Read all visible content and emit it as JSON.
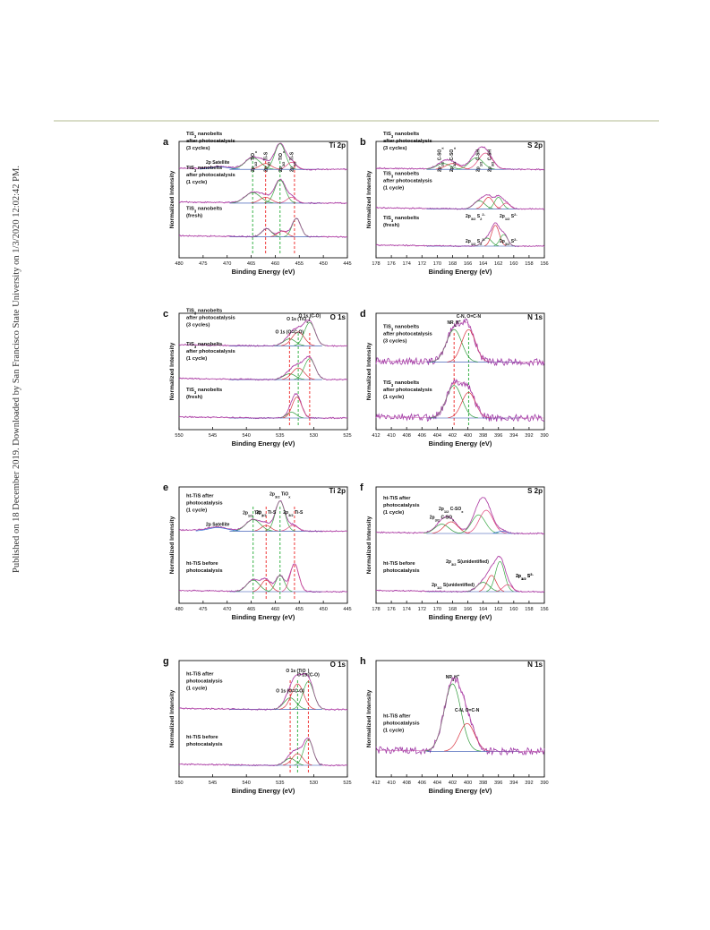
{
  "sidebar_text": "Published on 18 December 2019. Downloaded by San Francisco State University on 1/3/2020 12:02:42 PM.",
  "chart_data": [
    {
      "id": "a",
      "type": "line",
      "title": "Ti 2p",
      "xlabel": "Binding Energy (eV)",
      "ylabel": "Normalized Intensity",
      "xlim": [
        480,
        445
      ],
      "xticks": [
        480,
        475,
        470,
        465,
        460,
        455,
        450,
        445
      ],
      "spectra": [
        {
          "name": "TiS3 nanobelts after photocatalysis (3 cycles)",
          "label_lines": [
            "TiS<sub>3</sub> nanobelts",
            "after photocatalysis",
            "(3 cycles)"
          ],
          "base": 0.76,
          "peaks": [
            {
              "c": 464.7,
              "w": 1.6,
              "h": 0.1
            },
            {
              "c": 462.0,
              "w": 1.2,
              "h": 0.05
            },
            {
              "c": 459.0,
              "w": 1.1,
              "h": 0.22
            },
            {
              "c": 456.6,
              "w": 1.0,
              "h": 0.06
            },
            {
              "c": 471.5,
              "w": 2.0,
              "h": 0.02
            }
          ]
        },
        {
          "name": "TiS3 nanobelts after photocatalysis (1 cycle)",
          "label_lines": [
            "TiS<sub>3</sub> nanobelts",
            "after photocatalysis",
            "(1 cycle)"
          ],
          "base": 0.47,
          "peaks": [
            {
              "c": 464.7,
              "w": 1.6,
              "h": 0.09
            },
            {
              "c": 462.0,
              "w": 1.2,
              "h": 0.05
            },
            {
              "c": 459.0,
              "w": 1.1,
              "h": 0.2
            },
            {
              "c": 456.6,
              "w": 1.0,
              "h": 0.05
            }
          ]
        },
        {
          "name": "TiS3 nanobelts (fresh)",
          "label_lines": [
            "TiS<sub>3</sub> nanobelts",
            "(fresh)"
          ],
          "base": 0.18,
          "peaks": [
            {
              "c": 461.8,
              "w": 1.0,
              "h": 0.07
            },
            {
              "c": 458.5,
              "w": 1.0,
              "h": 0.05
            },
            {
              "c": 455.6,
              "w": 0.9,
              "h": 0.16
            }
          ]
        }
      ],
      "annotations": [
        "2p Satellite"
      ],
      "peak_labels": [
        "2p<tspan baseline-shift='sub' font-size='4'>1/2</tspan> TiO<tspan baseline-shift='sub' font-size='4'>x</tspan>",
        "2p<tspan baseline-shift='sub' font-size='4'>1/2</tspan> Ti-S",
        "2p<tspan baseline-shift='sub' font-size='4'>3/2</tspan> TiO<tspan baseline-shift='sub' font-size='4'>x</tspan>",
        "2p<tspan baseline-shift='sub' font-size='4'>3/2</tspan> Ti-S"
      ],
      "dashed_lines": [
        {
          "x": 464.7,
          "color": "#22aa33"
        },
        {
          "x": 462.0,
          "color": "#ee2222"
        },
        {
          "x": 459.0,
          "color": "#22aa33"
        },
        {
          "x": 456.0,
          "color": "#ee2222"
        }
      ]
    },
    {
      "id": "b",
      "type": "line",
      "title": "S 2p",
      "xlabel": "Binding Energy (eV)",
      "ylabel": "Normalized Intensity",
      "xlim": [
        178,
        156
      ],
      "xticks": [
        178,
        176,
        174,
        172,
        170,
        168,
        166,
        164,
        162,
        160,
        158,
        156
      ],
      "spectra": [
        {
          "name": "TiS3 nanobelts after photocatalysis (3 cycles)",
          "label_lines": [
            "TiS<sub>3</sub> nanobelts",
            "after photocatalysis",
            "(3 cycles)"
          ],
          "base": 0.76,
          "peaks": [
            {
              "c": 169.2,
              "w": 0.9,
              "h": 0.05
            },
            {
              "c": 168.0,
              "w": 0.9,
              "h": 0.05
            },
            {
              "c": 164.9,
              "w": 0.9,
              "h": 0.1
            },
            {
              "c": 163.7,
              "w": 0.9,
              "h": 0.14
            }
          ]
        },
        {
          "name": "TiS3 nanobelts after photocatalysis (1 cycle)",
          "label_lines": [
            "TiS<sub>3</sub> nanobelts",
            "after photocatalysis",
            "(1 cycle)"
          ],
          "base": 0.42,
          "peaks": [
            {
              "c": 164.5,
              "w": 0.7,
              "h": 0.07
            },
            {
              "c": 163.3,
              "w": 0.6,
              "h": 0.1
            },
            {
              "c": 162.0,
              "w": 0.5,
              "h": 0.1
            },
            {
              "c": 161.0,
              "w": 0.5,
              "h": 0.05
            }
          ]
        },
        {
          "name": "TiS3 nanobelts (fresh)",
          "label_lines": [
            "TiS<sub>3</sub> nanobelts",
            "(fresh)"
          ],
          "base": 0.1,
          "peaks": [
            {
              "c": 163.5,
              "w": 0.6,
              "h": 0.07
            },
            {
              "c": 162.4,
              "w": 0.5,
              "h": 0.18
            },
            {
              "c": 161.3,
              "w": 0.5,
              "h": 0.1
            }
          ]
        }
      ],
      "peak_labels": [
        "2p<tspan baseline-shift='sub' font-size='4'>1/2</tspan> C-SO<tspan baseline-shift='sub' font-size='4'>x</tspan>",
        "2p<tspan baseline-shift='sub' font-size='4'>3/2</tspan> C-SO<tspan baseline-shift='sub' font-size='4'>x</tspan>",
        "2p<tspan baseline-shift='sub' font-size='4'>1/2</tspan> C-SH",
        "2p<tspan baseline-shift='sub' font-size='4'>3/2</tspan> C-SH",
        "2p<tspan baseline-shift='sub' font-size='4'>3/2</tspan> S<tspan baseline-shift='sub' font-size='4'>2</tspan><tspan baseline-shift='super' font-size='4'>2-</tspan>",
        "2p<tspan baseline-shift='sub' font-size='4'>1/2</tspan> S<tspan baseline-shift='super' font-size='4'>2-</tspan>",
        "2p<tspan baseline-shift='sub' font-size='4'>1/2</tspan> S<tspan baseline-shift='sub' font-size='4'>2</tspan><tspan baseline-shift='super' font-size='4'>2-</tspan>",
        "2p<tspan baseline-shift='sub' font-size='4'>3/2</tspan> S<tspan baseline-shift='super' font-size='4'>2-</tspan>"
      ]
    },
    {
      "id": "c",
      "type": "line",
      "title": "O 1s",
      "xlabel": "Binding Energy (eV)",
      "ylabel": "Normalized Intensity",
      "xlim": [
        550,
        525
      ],
      "xticks": [
        550,
        545,
        540,
        535,
        530,
        525
      ],
      "spectra": [
        {
          "name": "TiS3 nanobelts after photocatalysis (3 cycles)",
          "label_lines": [
            "TiS<sub>3</sub> nanobelts",
            "after photocatalysis",
            "(3 cycles)"
          ],
          "base": 0.72,
          "peaks": [
            {
              "c": 533.6,
              "w": 0.9,
              "h": 0.06
            },
            {
              "c": 532.3,
              "w": 0.9,
              "h": 0.12
            },
            {
              "c": 530.6,
              "w": 0.8,
              "h": 0.2
            }
          ]
        },
        {
          "name": "TiS3 nanobelts after photocatalysis (1 cycle)",
          "label_lines": [
            "TiS<sub>3</sub> nanobelts",
            "after photocatalysis",
            "(1 cycle)"
          ],
          "base": 0.43,
          "peaks": [
            {
              "c": 533.6,
              "w": 0.9,
              "h": 0.05
            },
            {
              "c": 532.3,
              "w": 0.9,
              "h": 0.1
            },
            {
              "c": 530.6,
              "w": 0.8,
              "h": 0.18
            }
          ]
        },
        {
          "name": "TiS3 nanobelts (fresh)",
          "label_lines": [
            "TiS<sub>3</sub> nanobelts",
            "(fresh)"
          ],
          "base": 0.1,
          "peaks": [
            {
              "c": 533.3,
              "w": 0.7,
              "h": 0.05
            },
            {
              "c": 532.5,
              "w": 0.7,
              "h": 0.18
            }
          ]
        }
      ],
      "peak_labels": [
        "O 1s (O=C-O)",
        "O 1s (TiO<tspan baseline-shift='sub' font-size='4'>x</tspan>)",
        "O 1s (C-O)"
      ],
      "dashed_lines": [
        {
          "x": 533.6,
          "color": "#ee2222"
        },
        {
          "x": 532.3,
          "color": "#22aa33"
        },
        {
          "x": 530.6,
          "color": "#ee2222"
        }
      ]
    },
    {
      "id": "d",
      "type": "line",
      "title": "N 1s",
      "xlabel": "Binding Energy (eV)",
      "ylabel": "Normalized Intensity",
      "xlim": [
        412,
        390
      ],
      "xticks": [
        412,
        410,
        408,
        406,
        404,
        402,
        400,
        398,
        396,
        394,
        392,
        390
      ],
      "spectra": [
        {
          "name": "TiS3 nanobelts after photocatalysis (3 cycles)",
          "label_lines": [
            "TiS<sub>3</sub> nanobelts",
            "after photocatalysis",
            "(3 cycles)"
          ],
          "base": 0.58,
          "peaks": [
            {
              "c": 401.8,
              "w": 1.0,
              "h": 0.28
            },
            {
              "c": 399.9,
              "w": 0.9,
              "h": 0.28
            }
          ]
        },
        {
          "name": "TiS3 nanobelts after photocatalysis (1 cycle)",
          "label_lines": [
            "TiS<sub>3</sub> nanobelts",
            "after photocatalysis",
            "(1 cycle)"
          ],
          "base": 0.1,
          "peaks": [
            {
              "c": 401.8,
              "w": 1.0,
              "h": 0.28
            },
            {
              "c": 399.9,
              "w": 0.9,
              "h": 0.22
            }
          ]
        }
      ],
      "peak_labels": [
        "NR<tspan baseline-shift='sub' font-size='4'>4</tspan>H<tspan baseline-shift='super' font-size='4'>+</tspan>",
        "C-N, O=C-N"
      ],
      "dashed_lines": [
        {
          "x": 401.8,
          "color": "#ee2222"
        },
        {
          "x": 399.9,
          "color": "#22aa33"
        }
      ]
    },
    {
      "id": "e",
      "type": "line",
      "title": "Ti 2p",
      "xlabel": "Binding Energy (eV)",
      "ylabel": "Normalized Intensity",
      "xlim": [
        480,
        445
      ],
      "xticks": [
        480,
        475,
        470,
        465,
        460,
        455,
        450,
        445
      ],
      "spectra": [
        {
          "name": "ht-TiS after photocatalysis (1 cycle)",
          "label_lines": [
            "ht-TiS after",
            "photocatalysis",
            "(1 cycle)"
          ],
          "base": 0.62,
          "peaks": [
            {
              "c": 464.6,
              "w": 1.5,
              "h": 0.1
            },
            {
              "c": 461.9,
              "w": 1.0,
              "h": 0.05
            },
            {
              "c": 459.0,
              "w": 1.0,
              "h": 0.26
            },
            {
              "c": 456.3,
              "w": 1.0,
              "h": 0.05
            },
            {
              "c": 472.0,
              "w": 2.0,
              "h": 0.03
            }
          ]
        },
        {
          "name": "ht-TiS before photocatalysis",
          "label_lines": [
            "ht-TiS before",
            "photocatalysis"
          ],
          "base": 0.1,
          "peaks": [
            {
              "c": 464.6,
              "w": 1.3,
              "h": 0.1
            },
            {
              "c": 461.9,
              "w": 1.0,
              "h": 0.1
            },
            {
              "c": 459.0,
              "w": 0.9,
              "h": 0.14
            },
            {
              "c": 456.0,
              "w": 0.9,
              "h": 0.24
            }
          ]
        }
      ],
      "annotations": [
        "2p Satellite"
      ],
      "peak_labels": [
        "2p<tspan baseline-shift='sub' font-size='4'>1/2</tspan> TiO<tspan baseline-shift='sub' font-size='4'>x</tspan>",
        "2p<tspan baseline-shift='sub' font-size='4'>1/2</tspan> Ti-S",
        "2p<tspan baseline-shift='sub' font-size='4'>3/2</tspan> TiO<tspan baseline-shift='sub' font-size='4'>x</tspan>",
        "2p<tspan baseline-shift='sub' font-size='4'>3/2</tspan> Ti-S"
      ],
      "dashed_lines": [
        {
          "x": 464.6,
          "color": "#22aa33"
        },
        {
          "x": 461.9,
          "color": "#ee2222"
        },
        {
          "x": 459.0,
          "color": "#22aa33"
        },
        {
          "x": 456.0,
          "color": "#ee2222"
        }
      ]
    },
    {
      "id": "f",
      "type": "line",
      "title": "S 2p",
      "xlabel": "Binding Energy (eV)",
      "ylabel": "Normalized Intensity",
      "xlim": [
        178,
        156
      ],
      "xticks": [
        178,
        176,
        174,
        172,
        170,
        168,
        166,
        164,
        162,
        160,
        158,
        156
      ],
      "spectra": [
        {
          "name": "ht-TiS after photocatalysis (1 cycle)",
          "label_lines": [
            "ht-TiS after",
            "photocatalysis",
            "(1 cycle)"
          ],
          "base": 0.6,
          "peaks": [
            {
              "c": 169.4,
              "w": 0.9,
              "h": 0.08
            },
            {
              "c": 168.2,
              "w": 0.9,
              "h": 0.1
            },
            {
              "c": 164.6,
              "w": 0.9,
              "h": 0.16
            },
            {
              "c": 163.6,
              "w": 0.9,
              "h": 0.2
            },
            {
              "c": 161.5,
              "w": 0.6,
              "h": 0.02
            }
          ]
        },
        {
          "name": "ht-TiS before photocatalysis",
          "label_lines": [
            "ht-TiS before",
            "photocatalysis"
          ],
          "base": 0.1,
          "peaks": [
            {
              "c": 164.0,
              "w": 0.8,
              "h": 0.08
            },
            {
              "c": 162.9,
              "w": 0.6,
              "h": 0.14
            },
            {
              "c": 161.8,
              "w": 0.6,
              "h": 0.26
            },
            {
              "c": 160.8,
              "w": 0.6,
              "h": 0.06
            }
          ]
        }
      ],
      "peak_labels": [
        "2p<tspan baseline-shift='sub' font-size='4'>3/2</tspan> C-SO<tspan baseline-shift='sub' font-size='4'>x</tspan>",
        "2p<tspan baseline-shift='sub' font-size='4'>1/2</tspan> C-SO<tspan baseline-shift='sub' font-size='4'>x</tspan>",
        "2p<tspan baseline-shift='sub' font-size='4'>3/2</tspan> S(unidentified)",
        "2p<tspan baseline-shift='sub' font-size='4'>1/2</tspan> S(unidentified)",
        "2p<tspan baseline-shift='sub' font-size='4'>3/2</tspan> S<tspan baseline-shift='super' font-size='4'>2-</tspan>",
        "2p<tspan baseline-shift='sub' font-size='4'>1/2</tspan> S<tspan baseline-shift='super' font-size='4'>2-</tspan>"
      ]
    },
    {
      "id": "g",
      "type": "line",
      "title": "O 1s",
      "xlabel": "Binding Energy (eV)",
      "ylabel": "Normalized Intensity",
      "xlim": [
        550,
        525
      ],
      "xticks": [
        550,
        545,
        540,
        535,
        530,
        525
      ],
      "spectra": [
        {
          "name": "ht-TiS after photocatalysis (1 cycle)",
          "label_lines": [
            "ht-TiS after",
            "photocatalysis",
            "(1 cycle)"
          ],
          "base": 0.58,
          "peaks": [
            {
              "c": 533.5,
              "w": 0.9,
              "h": 0.1
            },
            {
              "c": 532.4,
              "w": 0.9,
              "h": 0.22
            },
            {
              "c": 530.8,
              "w": 0.8,
              "h": 0.24
            }
          ]
        },
        {
          "name": "ht-TiS before photocatalysis",
          "label_lines": [
            "ht-TiS before",
            "photocatalysis"
          ],
          "base": 0.1,
          "peaks": [
            {
              "c": 533.5,
              "w": 0.8,
              "h": 0.06
            },
            {
              "c": 532.4,
              "w": 0.8,
              "h": 0.1
            },
            {
              "c": 530.8,
              "w": 0.7,
              "h": 0.22
            }
          ]
        }
      ],
      "peak_labels": [
        "O 1s (O=C-O)",
        "O 1s (TiO<tspan baseline-shift='sub' font-size='4'>x</tspan>)",
        "O 1s (C-O)"
      ],
      "dashed_lines": [
        {
          "x": 533.5,
          "color": "#ee2222"
        },
        {
          "x": 532.4,
          "color": "#22aa33"
        },
        {
          "x": 530.8,
          "color": "#ee2222"
        }
      ]
    },
    {
      "id": "h",
      "type": "line",
      "title": "N 1s",
      "xlabel": "Binding Energy (eV)",
      "ylabel": "Normalized Intensity",
      "xlim": [
        412,
        390
      ],
      "xticks": [
        412,
        410,
        408,
        406,
        404,
        402,
        400,
        398,
        396,
        394,
        392,
        390
      ],
      "spectra": [
        {
          "name": "ht-TiS after photocatalysis (1 cycle)",
          "label_lines": [
            "ht-TiS after",
            "photocatalysis",
            "(1 cycle)"
          ],
          "base": 0.22,
          "peaks": [
            {
              "c": 402.0,
              "w": 1.1,
              "h": 0.58
            },
            {
              "c": 400.1,
              "w": 1.0,
              "h": 0.24
            }
          ]
        }
      ],
      "peak_labels": [
        "NR<tspan baseline-shift='sub' font-size='4'>4</tspan>H<tspan baseline-shift='super' font-size='4'>+</tspan>",
        "C-N, O=C-N"
      ]
    }
  ]
}
